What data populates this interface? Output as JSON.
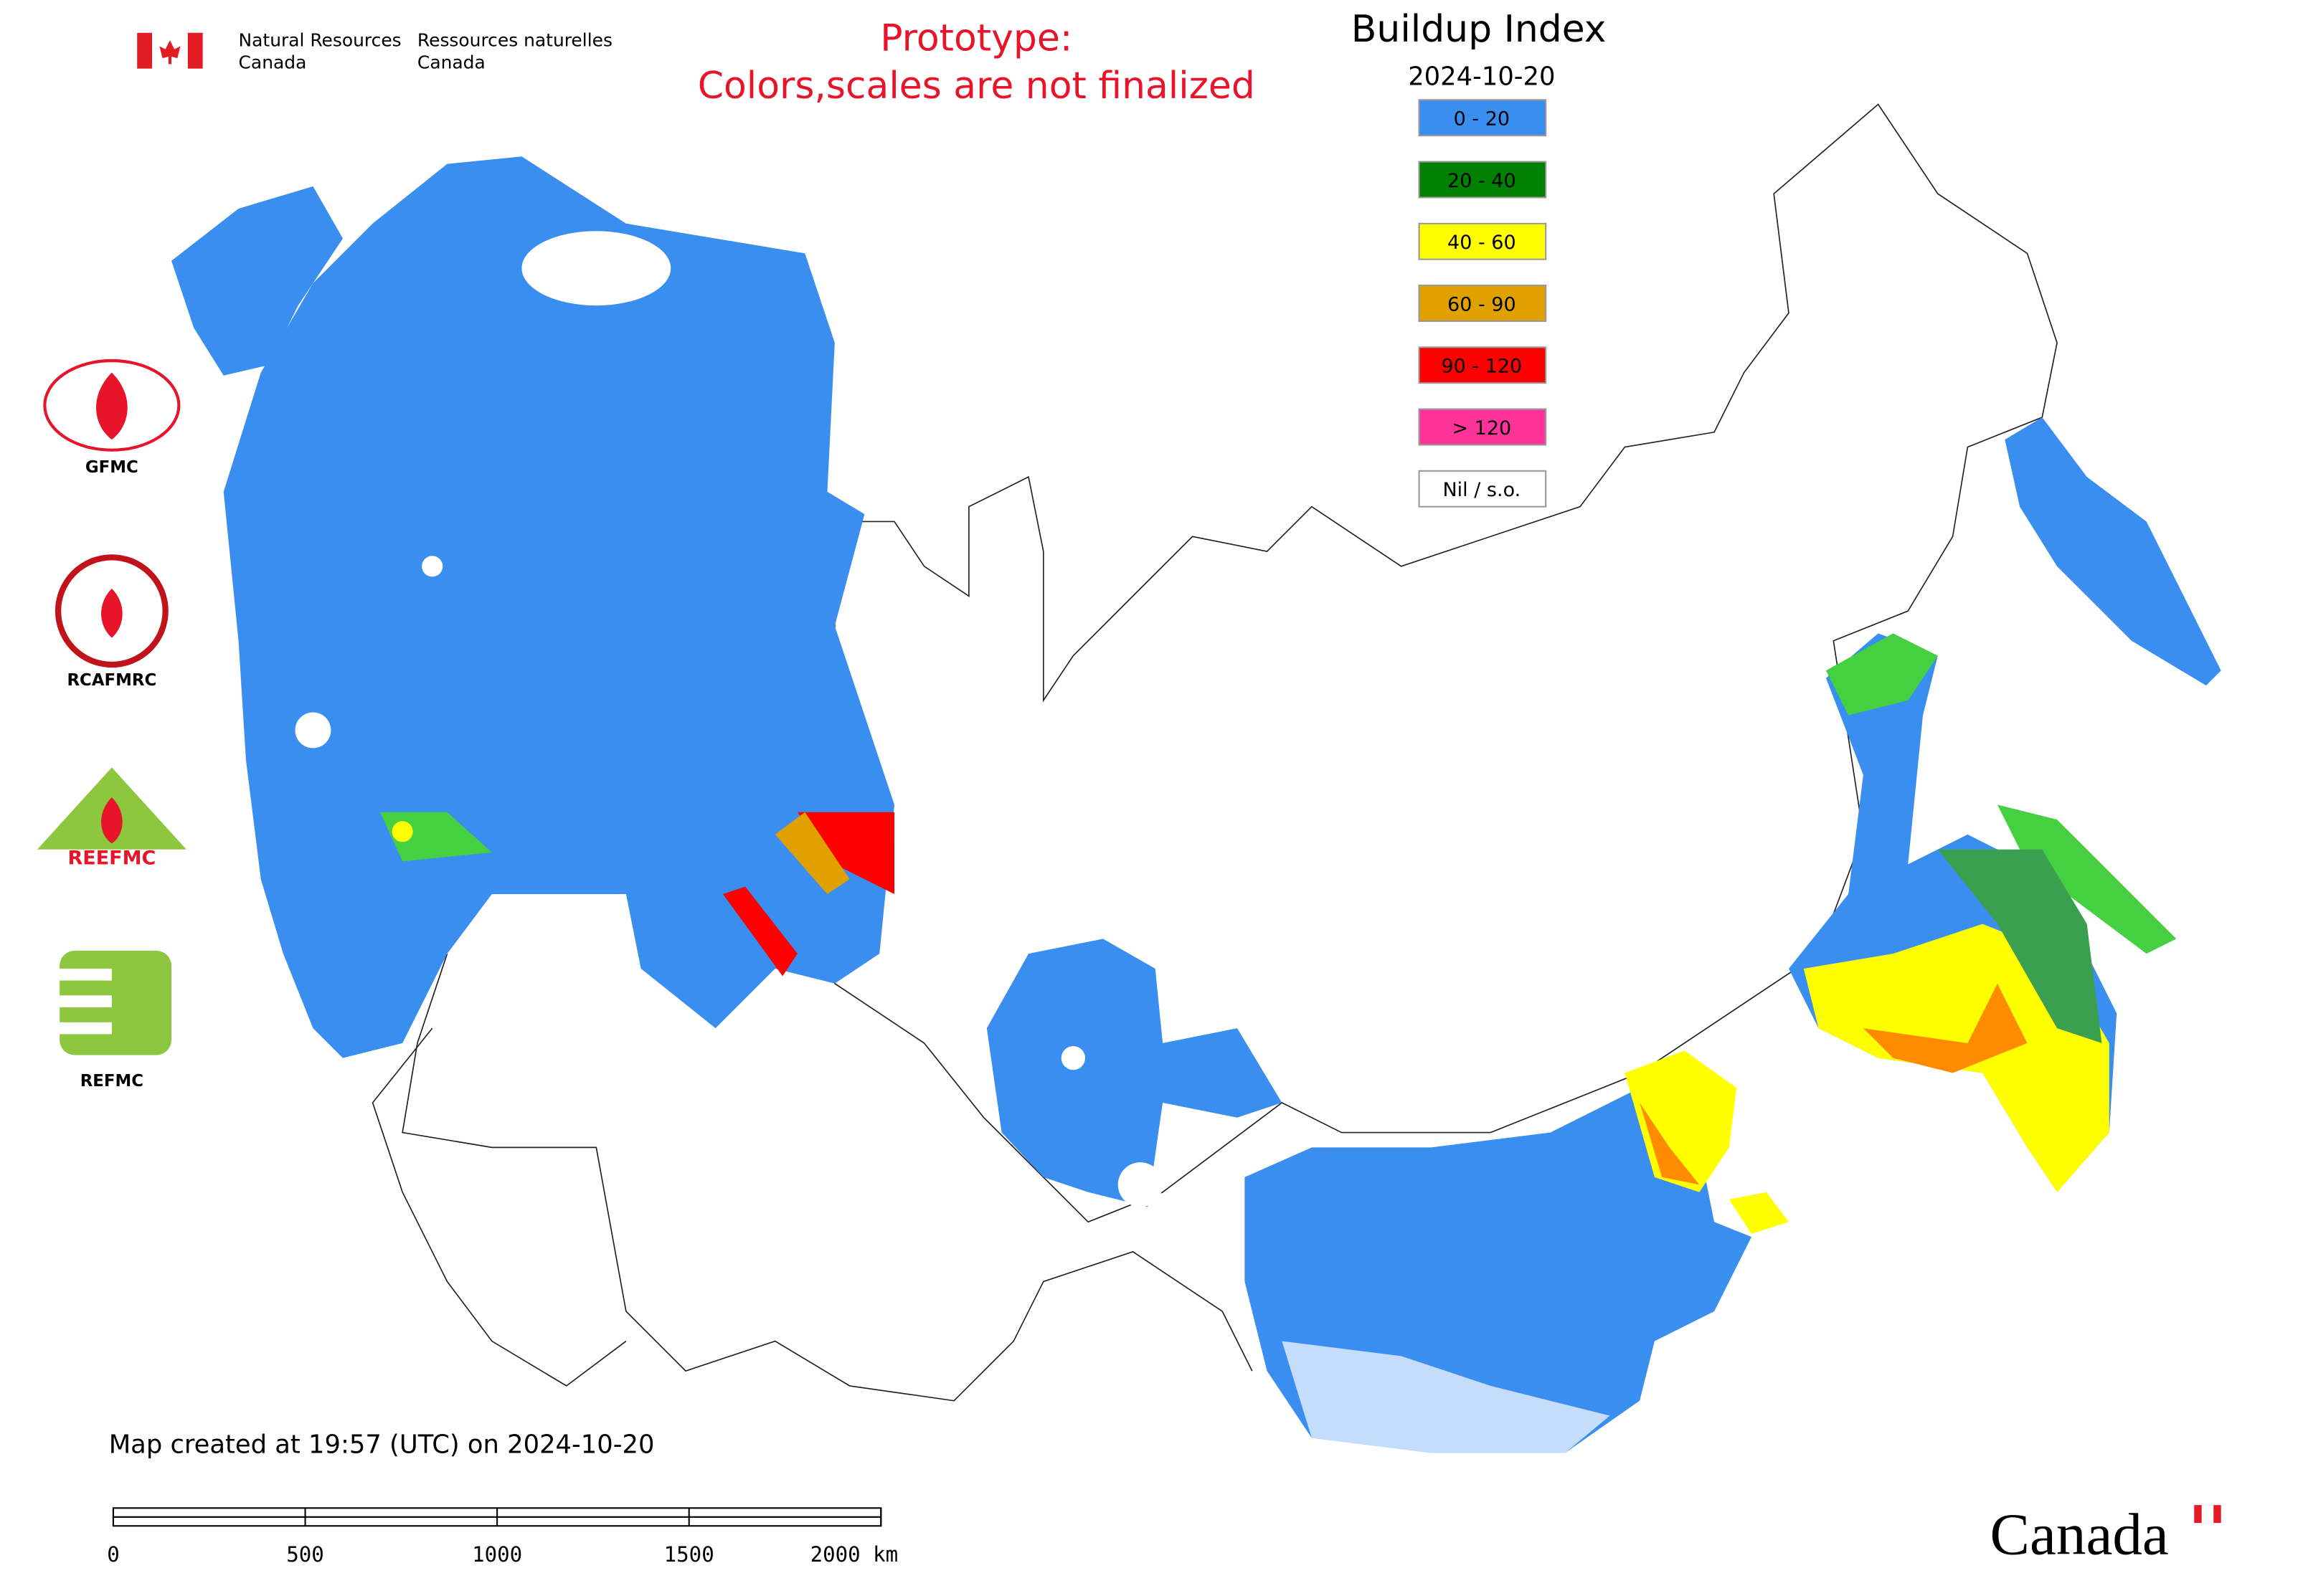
{
  "header": {
    "org_en": [
      "Natural Resources",
      "Canada"
    ],
    "org_fr": [
      "Ressources naturelles",
      "Canada"
    ]
  },
  "notice": [
    "Prototype:",
    "Colors,scales are not finalized"
  ],
  "legend": {
    "title": "Buildup Index",
    "date": "2024-10-20",
    "items": [
      {
        "label": "0 - 20",
        "color": "#3a8ef0"
      },
      {
        "label": "20 - 40",
        "color": "#008000"
      },
      {
        "label": "40 - 60",
        "color": "#ffff00"
      },
      {
        "label": "60 - 90",
        "color": "#e0a000"
      },
      {
        "label": "90 - 120",
        "color": "#ff0000"
      },
      {
        "label": "> 120",
        "color": "#ff3399"
      },
      {
        "label": "Nil / s.o.",
        "color": "#ffffff"
      }
    ]
  },
  "logos": [
    "GFMC",
    "RCAFMRC",
    "REEFMC",
    "REFMC"
  ],
  "footer": "Map created at 19:57 (UTC) on 2024-10-20",
  "scale_bar": {
    "ticks": [
      0,
      500,
      1000,
      1500,
      {
        "value": 2000,
        "label": "2000 km"
      }
    ]
  },
  "wordmark": "Canada"
}
